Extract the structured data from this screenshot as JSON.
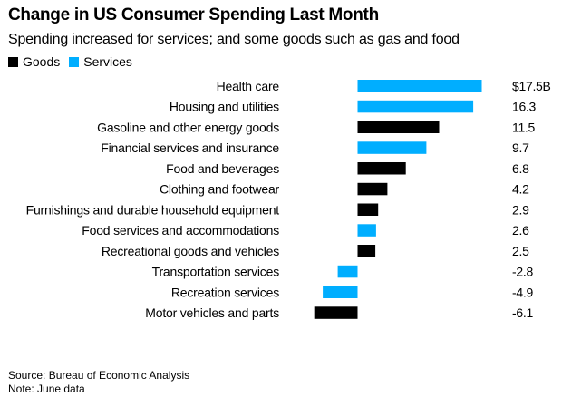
{
  "colors": {
    "goods": "#000000",
    "services": "#00aeff"
  },
  "chart_data": {
    "type": "bar",
    "orientation": "horizontal",
    "title": "Change in US Consumer Spending Last Month",
    "subtitle": "Spending increased for services; and some goods such as gas and food",
    "xlabel": "",
    "ylabel": "",
    "unit_prefix": "$",
    "unit_suffix": "B",
    "xlim": [
      -6.1,
      17.5
    ],
    "grid": false,
    "legend": {
      "placement": "top-left",
      "entries": [
        {
          "name": "Goods",
          "key": "goods"
        },
        {
          "name": "Services",
          "key": "services"
        }
      ]
    },
    "categories": [
      "Health care",
      "Housing and utilities",
      "Gasoline and other energy goods",
      "Financial services and insurance",
      "Food and beverages",
      "Clothing and footwear",
      "Furnishings and durable household equipment",
      "Food services and accommodations",
      "Recreational goods and vehicles",
      "Transportation services",
      "Recreation services",
      "Motor vehicles and parts"
    ],
    "values": [
      17.5,
      16.3,
      11.5,
      9.7,
      6.8,
      4.2,
      2.9,
      2.6,
      2.5,
      -2.8,
      -4.9,
      -6.1
    ],
    "series_type": [
      "services",
      "services",
      "goods",
      "services",
      "goods",
      "goods",
      "goods",
      "services",
      "goods",
      "services",
      "services",
      "goods"
    ],
    "value_labels": [
      "$17.5B",
      "16.3",
      "11.5",
      "9.7",
      "6.8",
      "4.2",
      "2.9",
      "2.6",
      "2.5",
      "-2.8",
      "-4.9",
      "-6.1"
    ]
  },
  "footer": {
    "source": "Source: Bureau of Economic Analysis",
    "note": "Note: June data"
  }
}
